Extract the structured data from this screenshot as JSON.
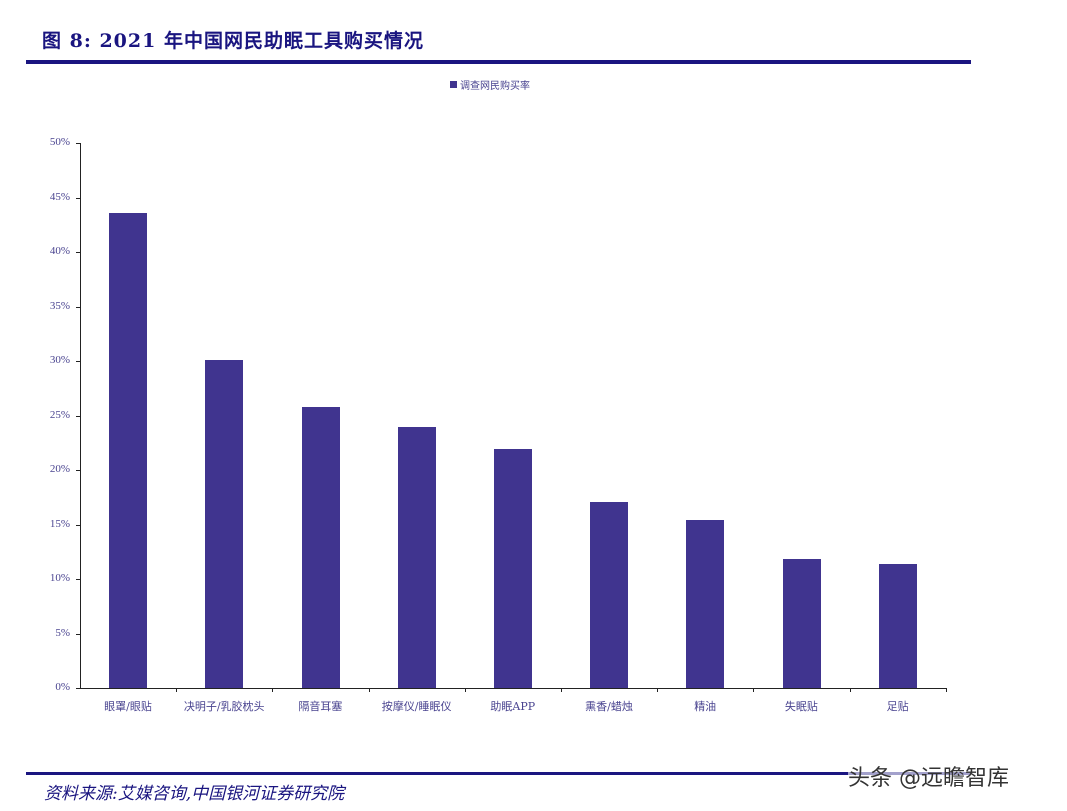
{
  "header": {
    "figure_title": "图 8:  2021 年中国网民助眠工具购买情况"
  },
  "legend": {
    "label": "调查网民购买率",
    "color": "#40348f"
  },
  "footer": {
    "source": "资料来源:艾媒咨询,中国银河证券研究院",
    "watermark": "头条 @远瞻智库"
  },
  "chart_data": {
    "type": "bar",
    "title": "2021 年中国网民助眠工具购买情况",
    "xlabel": "",
    "ylabel": "",
    "ylim": [
      0,
      50
    ],
    "y_unit": "%",
    "y_ticks": [
      "0%",
      "5%",
      "10%",
      "15%",
      "20%",
      "25%",
      "30%",
      "35%",
      "40%",
      "45%",
      "50%"
    ],
    "grid": false,
    "legend_position": "top",
    "categories": [
      "眼罩/眼贴",
      "决明子/乳胶枕头",
      "隔音耳塞",
      "按摩仪/睡眠仪",
      "助眠APP",
      "熏香/蜡烛",
      "精油",
      "失眠贴",
      "足贴"
    ],
    "series": [
      {
        "name": "调查网民购买率",
        "color": "#40348f",
        "values": [
          43.6,
          30.1,
          25.8,
          23.9,
          21.9,
          17.1,
          15.4,
          11.8,
          11.4
        ]
      }
    ]
  }
}
